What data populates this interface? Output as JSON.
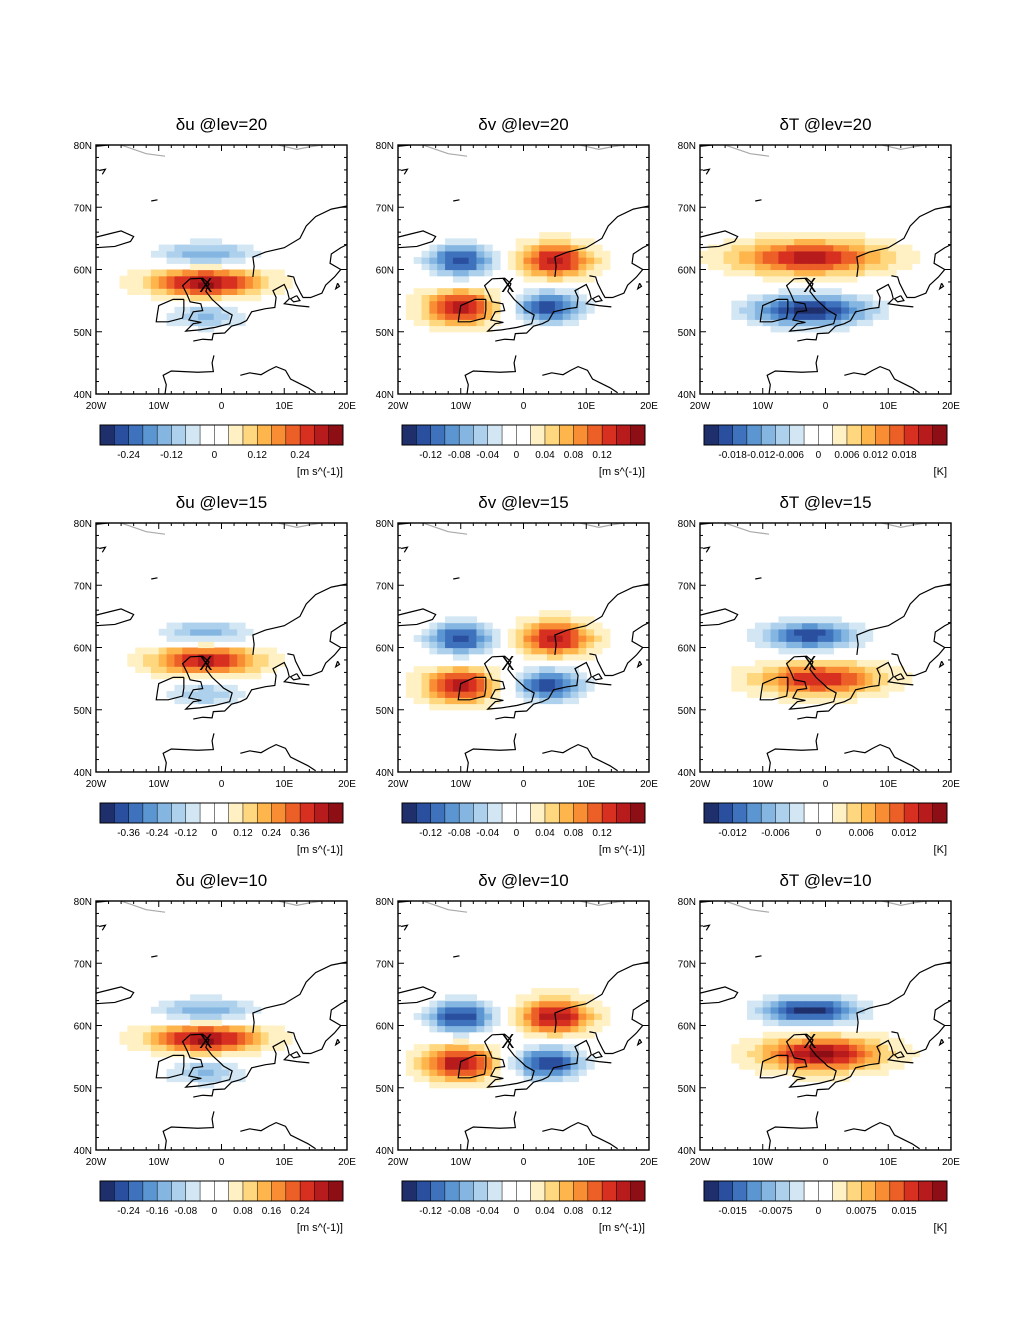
{
  "figure": {
    "lon_ticks": [
      "20W",
      "10W",
      "0",
      "10E",
      "20E"
    ],
    "lat_ticks": [
      "80N",
      "70N",
      "60N",
      "50N",
      "40N"
    ],
    "extent": {
      "lon": [
        -20,
        20
      ],
      "lat": [
        40,
        80
      ]
    },
    "colors": [
      "#1f2f6b",
      "#2a4f9e",
      "#3f72bd",
      "#5c96d2",
      "#84b6e1",
      "#add0ec",
      "#d2e6f4",
      "#ffffff",
      "#ffffff",
      "#fff1c4",
      "#fed77f",
      "#fdb54c",
      "#f88d34",
      "#ec5f26",
      "#d73020",
      "#b71b1c",
      "#8d0f15"
    ],
    "marker_label": "X",
    "marker": {
      "lon": -2.5,
      "lat": 57.5
    }
  },
  "panels": [
    {
      "id": "du20",
      "title": "δu @lev=20",
      "pattern": "u",
      "level": 20,
      "amp": 1.0,
      "colorbar": {
        "labels": [
          "-0.24",
          "-0.12",
          "0",
          "0.12",
          "0.24"
        ],
        "units": "[m s^(-1)]"
      }
    },
    {
      "id": "dv20",
      "title": "δv @lev=20",
      "pattern": "v",
      "level": 20,
      "amp": 0.95,
      "colorbar": {
        "labels": [
          "-0.12",
          "-0.08",
          "-0.04",
          "0",
          "0.04",
          "0.08",
          "0.12"
        ],
        "units": "[m s^(-1)]"
      }
    },
    {
      "id": "dT20",
      "title": "δT @lev=20",
      "pattern": "T20",
      "level": 20,
      "amp": 1.0,
      "colorbar": {
        "labels": [
          "-0.018",
          "-0.012",
          "-0.006",
          "0",
          "0.006",
          "0.012",
          "0.018"
        ],
        "units": "[K]"
      }
    },
    {
      "id": "du15",
      "title": "δu @lev=15",
      "pattern": "u",
      "level": 15,
      "amp": 0.9,
      "colorbar": {
        "labels": [
          "-0.36",
          "-0.24",
          "-0.12",
          "0",
          "0.12",
          "0.24",
          "0.36"
        ],
        "units": "[m s^(-1)]"
      }
    },
    {
      "id": "dv15",
      "title": "δv @lev=15",
      "pattern": "v",
      "level": 15,
      "amp": 0.95,
      "colorbar": {
        "labels": [
          "-0.12",
          "-0.08",
          "-0.04",
          "0",
          "0.04",
          "0.08",
          "0.12"
        ],
        "units": "[m s^(-1)]"
      }
    },
    {
      "id": "dT15",
      "title": "δT @lev=15",
      "pattern": "T15",
      "level": 15,
      "amp": 1.0,
      "colorbar": {
        "labels": [
          "-0.012",
          "-0.006",
          "0",
          "0.006",
          "0.012"
        ],
        "units": "[K]"
      }
    },
    {
      "id": "du10",
      "title": "δu @lev=10",
      "pattern": "u",
      "level": 10,
      "amp": 1.0,
      "colorbar": {
        "labels": [
          "-0.24",
          "-0.16",
          "-0.08",
          "0",
          "0.08",
          "0.16",
          "0.24"
        ],
        "units": "[m s^(-1)]"
      }
    },
    {
      "id": "dv10",
      "title": "δv @lev=10",
      "pattern": "v",
      "level": 10,
      "amp": 1.0,
      "colorbar": {
        "labels": [
          "-0.12",
          "-0.08",
          "-0.04",
          "0",
          "0.04",
          "0.08",
          "0.12"
        ],
        "units": "[m s^(-1)]"
      }
    },
    {
      "id": "dT10",
      "title": "δT @lev=10",
      "pattern": "T10",
      "level": 10,
      "amp": 1.0,
      "colorbar": {
        "labels": [
          "-0.015",
          "-0.0075",
          "0",
          "0.0075",
          "0.015"
        ],
        "units": "[K]"
      }
    }
  ]
}
